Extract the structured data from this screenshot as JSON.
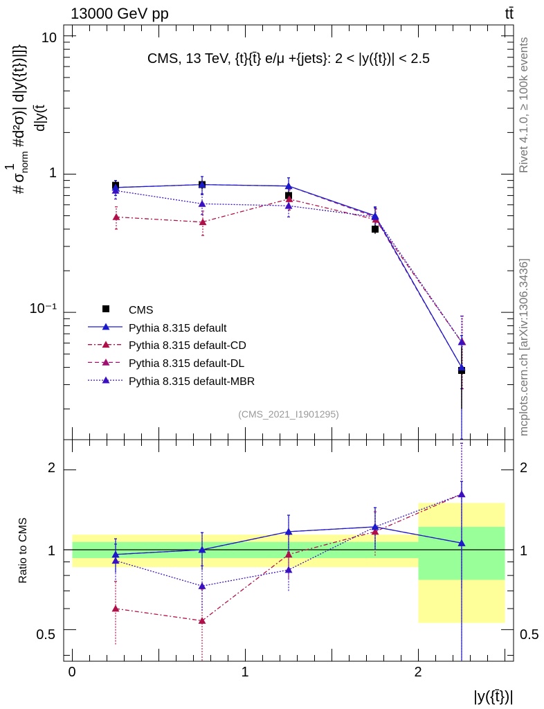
{
  "header": {
    "energy_label": "13000 GeV pp",
    "process_label": "tt̄"
  },
  "side_labels": {
    "rivet": "Rivet 4.1.0, ≥ 100k events",
    "mcplots": "mcplots.cern.ch [arXiv:1306.3436]"
  },
  "colors": {
    "cms": "#000000",
    "default": "#1a1acc",
    "default_cd": "#b0104a",
    "default_dl": "#a01070",
    "default_mbr": "#3a10c0",
    "band_green": "#99ff99",
    "band_yellow": "#ffff99"
  },
  "chart_data": [
    {
      "type": "scatter",
      "title": "CMS, 13 TeV, {t}{t̄} e/μ +{jets}: 2 < |y({t})| < 2.5",
      "watermark": "(CMS_2021_I1901295)",
      "ylabel": "#1/σnorm #d²σ/d|y(t̄)| d|y({t})|",
      "ylabel_parts": {
        "hash1": "#",
        "one": "1",
        "sigma": "σ",
        "norm": "norm",
        "hash2": "#",
        "d2": "d²σ",
        "tail": ")| d|y({t})|]}",
        "denominator": "d|y(t̄"
      },
      "yscale": "log",
      "ylim": [
        0.012,
        12
      ],
      "xlim": [
        -0.05,
        2.55
      ],
      "y_tick_labels": [
        "10",
        "1",
        "10⁻¹"
      ],
      "legend": [
        "CMS",
        "Pythia 8.315 default",
        "Pythia 8.315 default-CD",
        "Pythia 8.315 default-DL",
        "Pythia 8.315 default-MBR"
      ],
      "x": [
        0.25,
        0.75,
        1.25,
        1.75,
        2.25
      ],
      "series": [
        {
          "name": "CMS",
          "key": "cms",
          "marker": "square",
          "values": [
            0.83,
            0.84,
            0.7,
            0.4,
            0.038
          ],
          "err_low": [
            0.06,
            0.06,
            0.05,
            0.03,
            0.018
          ],
          "err_high": [
            0.06,
            0.06,
            0.05,
            0.03,
            0.018
          ]
        },
        {
          "name": "Pythia 8.315 default",
          "key": "default",
          "marker": "triangle",
          "values": [
            0.8,
            0.84,
            0.82,
            0.5,
            0.04
          ],
          "err_low": [
            0.1,
            0.12,
            0.12,
            0.08,
            0.028
          ],
          "err_high": [
            0.1,
            0.12,
            0.12,
            0.08,
            0.028
          ]
        },
        {
          "name": "Pythia 8.315 default-CD",
          "key": "default_cd",
          "marker": "triangle",
          "values": [
            0.49,
            0.45,
            0.66,
            0.47,
            0.061
          ],
          "err_low": [
            0.09,
            0.09,
            0.11,
            0.09,
            0.033
          ],
          "err_high": [
            0.09,
            0.09,
            0.11,
            0.09,
            0.033
          ]
        },
        {
          "name": "Pythia 8.315 default-DL",
          "key": "default_dl",
          "marker": "triangle",
          "values": [
            0.8,
            0.84,
            0.82,
            0.49,
            0.04
          ],
          "err_low": [
            0.1,
            0.12,
            0.12,
            0.08,
            0.028
          ],
          "err_high": [
            0.1,
            0.12,
            0.12,
            0.08,
            0.028
          ]
        },
        {
          "name": "Pythia 8.315 default-MBR",
          "key": "default_mbr",
          "marker": "triangle",
          "values": [
            0.76,
            0.61,
            0.59,
            0.49,
            0.061
          ],
          "err_low": [
            0.1,
            0.1,
            0.1,
            0.08,
            0.033
          ],
          "err_high": [
            0.1,
            0.1,
            0.1,
            0.08,
            0.033
          ]
        }
      ]
    },
    {
      "type": "scatter",
      "title": "",
      "ylabel": "Ratio to CMS",
      "xlabel": "|y({t̄})|",
      "yscale": "log",
      "ylim": [
        0.38,
        2.6
      ],
      "xlim": [
        -0.05,
        2.55
      ],
      "x_tick_labels": [
        "0",
        "1",
        "2"
      ],
      "y_tick_labels": [
        "0.5",
        "1",
        "2"
      ],
      "bins": [
        [
          0,
          0.5
        ],
        [
          0.5,
          1.0
        ],
        [
          1.0,
          1.5
        ],
        [
          1.5,
          2.0
        ],
        [
          2.0,
          2.5
        ]
      ],
      "band_green": [
        [
          0.93,
          1.07
        ],
        [
          0.93,
          1.07
        ],
        [
          0.93,
          1.07
        ],
        [
          0.93,
          1.07
        ],
        [
          0.77,
          1.22
        ]
      ],
      "band_yellow": [
        [
          0.86,
          1.14
        ],
        [
          0.86,
          1.14
        ],
        [
          0.86,
          1.14
        ],
        [
          0.86,
          1.14
        ],
        [
          0.53,
          1.5
        ]
      ],
      "x": [
        0.25,
        0.75,
        1.25,
        1.75,
        2.25
      ],
      "series": [
        {
          "name": "Pythia 8.315 default",
          "key": "default",
          "values": [
            0.96,
            1.0,
            1.17,
            1.22,
            1.06
          ],
          "err_low": [
            0.14,
            0.16,
            0.18,
            0.22,
            0.75
          ],
          "err_high": [
            0.14,
            0.16,
            0.18,
            0.22,
            0.75
          ]
        },
        {
          "name": "Pythia 8.315 default-CD",
          "key": "default_cd",
          "values": [
            0.6,
            0.54,
            0.96,
            1.17,
            1.62
          ],
          "err_low": [
            0.16,
            0.17,
            0.18,
            0.22,
            0.9
          ],
          "err_high": [
            0.16,
            0.17,
            0.18,
            0.22,
            0.9
          ]
        },
        {
          "name": "Pythia 8.315 default-DL",
          "key": "default_dl",
          "values": [
            0.96,
            1.0,
            1.17,
            1.22,
            1.06
          ],
          "err_low": [
            0.14,
            0.16,
            0.18,
            0.22,
            0.75
          ],
          "err_high": [
            0.14,
            0.16,
            0.18,
            0.22,
            0.75
          ]
        },
        {
          "name": "Pythia 8.315 default-MBR",
          "key": "default_mbr",
          "values": [
            0.91,
            0.73,
            0.84,
            1.22,
            1.62
          ],
          "err_low": [
            0.14,
            0.14,
            0.14,
            0.22,
            0.9
          ],
          "err_high": [
            0.14,
            0.14,
            0.14,
            0.22,
            0.9
          ]
        }
      ]
    }
  ]
}
